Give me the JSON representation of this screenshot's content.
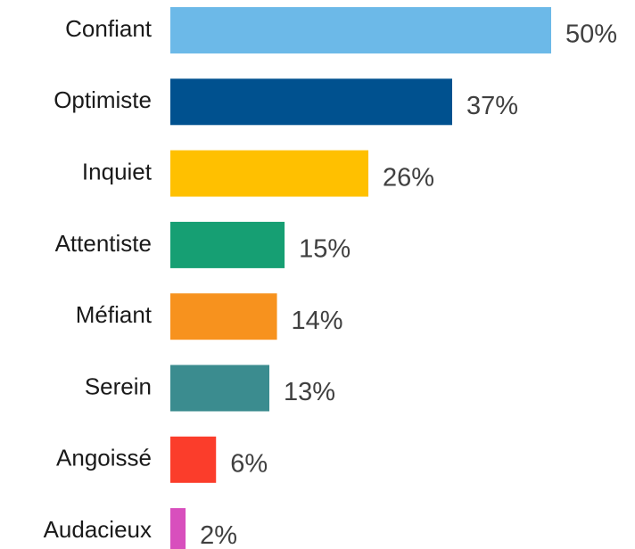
{
  "chart_data": {
    "type": "bar",
    "orientation": "horizontal",
    "categories": [
      "Confiant",
      "Optimiste",
      "Inquiet",
      "Attentiste",
      "Méfiant",
      "Serein",
      "Angoissé",
      "Audacieux"
    ],
    "values": [
      50,
      37,
      26,
      15,
      14,
      13,
      6,
      2
    ],
    "value_labels": [
      "50%",
      "37%",
      "26%",
      "15%",
      "14%",
      "13%",
      "6%",
      "2%"
    ],
    "colors": [
      "#6cb9e8",
      "#00518f",
      "#ffc000",
      "#169f73",
      "#f7921e",
      "#3b8c8f",
      "#fb3d2b",
      "#d84fbd"
    ]
  }
}
